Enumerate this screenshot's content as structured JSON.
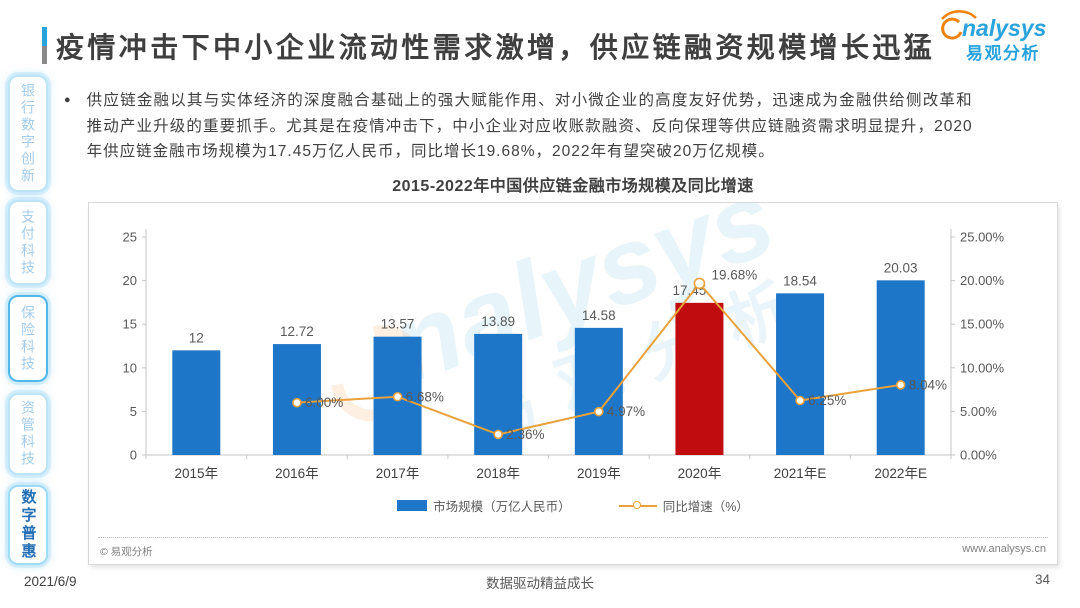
{
  "sidebar": {
    "tabs": [
      {
        "label": "银行数字创新",
        "active": false
      },
      {
        "label": "支付科技",
        "active": false
      },
      {
        "label": "保险科技",
        "active": false
      },
      {
        "label": "资管科技",
        "active": false
      },
      {
        "label": "数字普惠",
        "active": true
      }
    ]
  },
  "header": {
    "title": "疫情冲击下中小企业流动性需求激增，供应链融资规模增长迅猛",
    "logo": {
      "brand": "nalysys",
      "brand_cn": "易观分析"
    }
  },
  "content": {
    "bullet_glyph": "●",
    "paragraph": "供应链金融以其与实体经济的深度融合基础上的强大赋能作用、对小微企业的高度友好优势，迅速成为金融供给侧改革和推动产业升级的重要抓手。尤其是在疫情冲击下，中小企业对应收账款融资、反向保理等供应链融资需求明显提升，2020年供应链金融市场规模为17.45万亿人民币，同比增长19.68%，2022年有望突破20万亿规模。"
  },
  "chart": {
    "title": "2015-2022年中国供应链金融市场规模及同比增速",
    "copyright": "© 易观分析",
    "website": "www.analysys.cn",
    "watermark_brand": "nalysys",
    "watermark_cn": "易观分析"
  },
  "chart_data": {
    "type": "bar+line",
    "title": "2015-2022年中国供应链金融市场规模及同比增速",
    "categories": [
      "2015年",
      "2016年",
      "2017年",
      "2018年",
      "2019年",
      "2020年",
      "2021年E",
      "2022年E"
    ],
    "series": [
      {
        "name": "市场规模（万亿人民币）",
        "type": "bar",
        "values": [
          12,
          12.72,
          13.57,
          13.89,
          14.58,
          17.45,
          18.54,
          20.03
        ],
        "labels": [
          "12",
          "12.72",
          "13.57",
          "13.89",
          "14.58",
          "17.45",
          "18.54",
          "20.03"
        ],
        "color": "#1E76C8",
        "highlight_index": 5,
        "highlight_color": "#C00B0F"
      },
      {
        "name": "同比增速（%）",
        "type": "line",
        "values": [
          null,
          6.0,
          6.68,
          2.36,
          4.97,
          19.68,
          6.25,
          8.04
        ],
        "labels": [
          null,
          "6.00%",
          "6.68%",
          "2.36%",
          "4.97%",
          "19.68%",
          "6.25%",
          "8.04%"
        ],
        "color": "#E9A23B"
      }
    ],
    "left_axis": {
      "min": 0,
      "max": 25,
      "ticks": [
        "0",
        "5",
        "10",
        "15",
        "20",
        "25"
      ]
    },
    "right_axis": {
      "min": 0,
      "max": 0.25,
      "ticks": [
        "0.00%",
        "5.00%",
        "10.00%",
        "15.00%",
        "20.00%",
        "25.00%"
      ]
    },
    "grid": false,
    "legend_position": "bottom"
  },
  "footer": {
    "date": "2021/6/9",
    "motto": "数据驱动精益成长",
    "page": "34"
  },
  "colors": {
    "bar_blue": "#1E76C8",
    "bar_red": "#C00B0F",
    "line_orange": "#E9A23B",
    "brand_blue": "#2AA3DC",
    "brand_orange": "#F0820F",
    "tab_active_text": "#2570B5"
  }
}
